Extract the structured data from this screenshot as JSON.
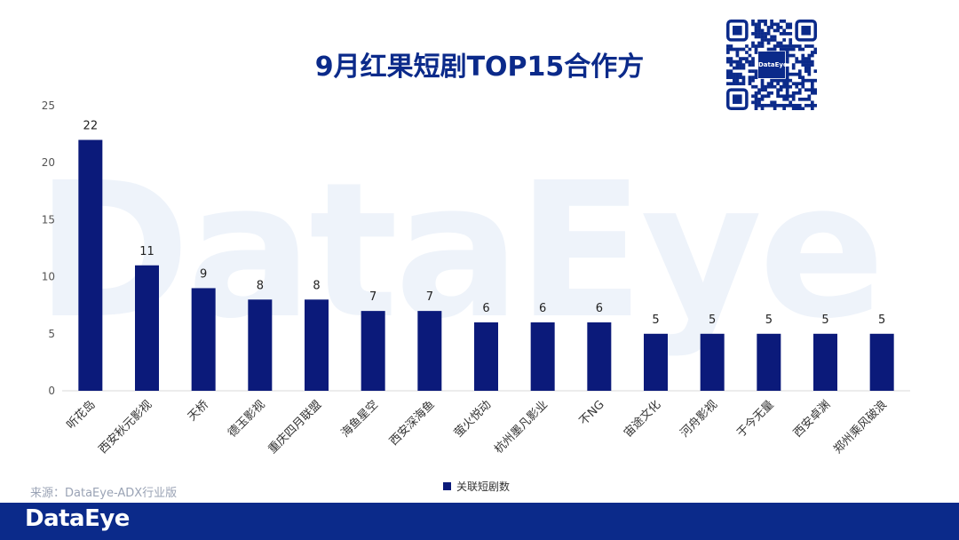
{
  "watermark": "DataEye",
  "qr": {
    "center_text": "DataEye"
  },
  "source": "来源：DataEye-ADX行业版",
  "footer": {
    "logo": "DataEye"
  },
  "colors": {
    "bar": "#0b1a7a",
    "title": "#0b2a8a",
    "footer": "#0b2a8a"
  },
  "chart_data": {
    "type": "bar",
    "title": "9月红果短剧TOP15合作方",
    "categories": [
      "听花岛",
      "西安秋元影视",
      "天桥",
      "德玉影视",
      "重庆四月联盟",
      "海鱼星空",
      "西安深海鱼",
      "萤火悦动",
      "杭州墨凡影业",
      "不NG",
      "宙途文化",
      "河舟影视",
      "于今无量",
      "西安卓渊",
      "郑州乘风破浪"
    ],
    "series": [
      {
        "name": "关联短剧数",
        "values": [
          22,
          11,
          9,
          8,
          8,
          7,
          7,
          6,
          6,
          6,
          5,
          5,
          5,
          5,
          5
        ]
      }
    ],
    "ylim": [
      0,
      25
    ],
    "yticks": [
      0,
      5,
      10,
      15,
      20,
      25
    ],
    "grid": false,
    "legend": "bottom"
  }
}
